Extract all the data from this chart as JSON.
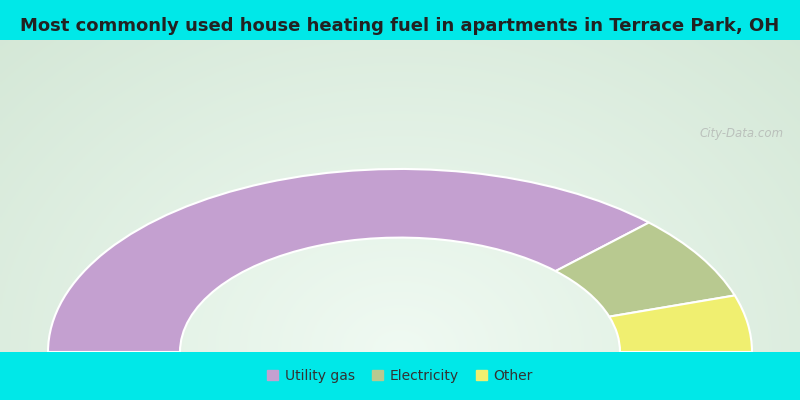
{
  "title": "Most commonly used house heating fuel in apartments in Terrace Park, OH",
  "title_fontsize": 13,
  "segments": [
    {
      "label": "Utility gas",
      "value": 75.0,
      "color": "#c4a0d0"
    },
    {
      "label": "Electricity",
      "value": 15.0,
      "color": "#b8c990"
    },
    {
      "label": "Other",
      "value": 10.0,
      "color": "#f0ef70"
    }
  ],
  "bg_color_outer": "#00e8e8",
  "legend_fontsize": 10,
  "watermark": "City-Data.com",
  "outer_r": 0.88,
  "inner_r": 0.55
}
